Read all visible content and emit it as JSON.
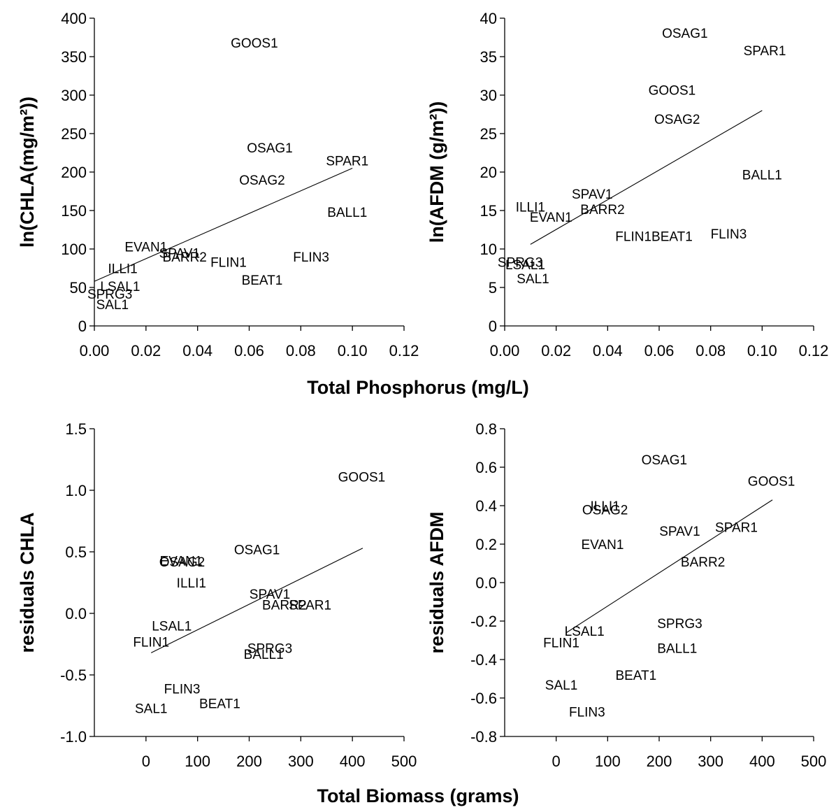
{
  "figure": {
    "row1_xlabel": "Total Phosphorus (mg/L)",
    "row2_xlabel": "Total Biomass (grams)"
  },
  "chart_data": [
    {
      "type": "scatter",
      "ylabel": "ln(CHLA(mg/m²))",
      "xlim": [
        0,
        0.12
      ],
      "ylim": [
        0,
        400
      ],
      "xticks": [
        "0.00",
        "0.02",
        "0.04",
        "0.06",
        "0.08",
        "0.10",
        "0.12"
      ],
      "yticks": [
        "0",
        "50",
        "100",
        "150",
        "200",
        "250",
        "300",
        "350",
        "400"
      ],
      "grid": false,
      "points": [
        {
          "label": "GOOS1",
          "x": 0.062,
          "y": 368
        },
        {
          "label": "OSAG1",
          "x": 0.068,
          "y": 232
        },
        {
          "label": "SPAR1",
          "x": 0.098,
          "y": 215
        },
        {
          "label": "OSAG2",
          "x": 0.065,
          "y": 190
        },
        {
          "label": "BALL1",
          "x": 0.098,
          "y": 148
        },
        {
          "label": "EVAN1",
          "x": 0.02,
          "y": 103
        },
        {
          "label": "SPAV1",
          "x": 0.033,
          "y": 95
        },
        {
          "label": "BARR2",
          "x": 0.035,
          "y": 90
        },
        {
          "label": "FLIN1",
          "x": 0.052,
          "y": 83
        },
        {
          "label": "FLIN3",
          "x": 0.084,
          "y": 90
        },
        {
          "label": "ILLI1",
          "x": 0.011,
          "y": 75
        },
        {
          "label": "BEAT1",
          "x": 0.065,
          "y": 60
        },
        {
          "label": "LSAL1",
          "x": 0.01,
          "y": 52
        },
        {
          "label": "SPRG3",
          "x": 0.006,
          "y": 42
        },
        {
          "label": "SAL1",
          "x": 0.007,
          "y": 28
        }
      ],
      "fit": {
        "x": [
          0.0,
          0.1
        ],
        "y": [
          58,
          205
        ]
      }
    },
    {
      "type": "scatter",
      "ylabel": "ln(AFDM (g/m²))",
      "xlim": [
        0,
        0.12
      ],
      "ylim": [
        0,
        40
      ],
      "xticks": [
        "0.00",
        "0.02",
        "0.04",
        "0.06",
        "0.08",
        "0.10",
        "0.12"
      ],
      "yticks": [
        "0",
        "5",
        "10",
        "15",
        "20",
        "25",
        "30",
        "35",
        "40"
      ],
      "grid": false,
      "points": [
        {
          "label": "OSAG1",
          "x": 0.07,
          "y": 38.1
        },
        {
          "label": "SPAR1",
          "x": 0.101,
          "y": 35.8
        },
        {
          "label": "GOOS1",
          "x": 0.065,
          "y": 30.7
        },
        {
          "label": "OSAG2",
          "x": 0.067,
          "y": 26.9
        },
        {
          "label": "BALL1",
          "x": 0.1,
          "y": 19.7
        },
        {
          "label": "SPAV1",
          "x": 0.034,
          "y": 17.2
        },
        {
          "label": "ILLI1",
          "x": 0.01,
          "y": 15.5
        },
        {
          "label": "BARR2",
          "x": 0.038,
          "y": 15.2
        },
        {
          "label": "EVAN1",
          "x": 0.018,
          "y": 14.2
        },
        {
          "label": "FLIN1",
          "x": 0.05,
          "y": 11.7
        },
        {
          "label": "BEAT1",
          "x": 0.065,
          "y": 11.7
        },
        {
          "label": "FLIN3",
          "x": 0.087,
          "y": 12.0
        },
        {
          "label": "SPRG3",
          "x": 0.006,
          "y": 8.3
        },
        {
          "label": "LSAL1",
          "x": 0.008,
          "y": 8.0
        },
        {
          "label": "SAL1",
          "x": 0.011,
          "y": 6.2
        }
      ],
      "fit": {
        "x": [
          0.01,
          0.1
        ],
        "y": [
          10.6,
          28.0
        ]
      }
    },
    {
      "type": "scatter",
      "ylabel": "residuals CHLA",
      "xlim": [
        -100,
        500
      ],
      "ylim": [
        -1.0,
        1.5
      ],
      "xticks": [
        "0",
        "100",
        "200",
        "300",
        "400",
        "500"
      ],
      "yticks": [
        "-1.0",
        "-0.5",
        "0.0",
        "0.5",
        "1.0",
        "1.5"
      ],
      "grid": false,
      "points": [
        {
          "label": "GOOS1",
          "x": 418,
          "y": 1.11
        },
        {
          "label": "OSAG1",
          "x": 215,
          "y": 0.52
        },
        {
          "label": "EVAN1",
          "x": 68,
          "y": 0.43
        },
        {
          "label": "OSAG2",
          "x": 70,
          "y": 0.42
        },
        {
          "label": "ILLI1",
          "x": 88,
          "y": 0.25
        },
        {
          "label": "SPAV1",
          "x": 240,
          "y": 0.16
        },
        {
          "label": "BARR2",
          "x": 268,
          "y": 0.07
        },
        {
          "label": "SPAR1",
          "x": 318,
          "y": 0.07
        },
        {
          "label": "LSAL1",
          "x": 50,
          "y": -0.1
        },
        {
          "label": "FLIN1",
          "x": 10,
          "y": -0.23
        },
        {
          "label": "SPRG3",
          "x": 240,
          "y": -0.28
        },
        {
          "label": "BALL1",
          "x": 228,
          "y": -0.33
        },
        {
          "label": "FLIN3",
          "x": 70,
          "y": -0.61
        },
        {
          "label": "BEAT1",
          "x": 143,
          "y": -0.73
        },
        {
          "label": "SAL1",
          "x": 10,
          "y": -0.77
        }
      ],
      "fit": {
        "x": [
          10,
          420
        ],
        "y": [
          -0.32,
          0.53
        ]
      }
    },
    {
      "type": "scatter",
      "ylabel": "residuals AFDM",
      "xlim": [
        -100,
        500
      ],
      "ylim": [
        -0.8,
        0.8
      ],
      "xticks": [
        "0",
        "100",
        "200",
        "300",
        "400",
        "500"
      ],
      "yticks": [
        "-0.8",
        "-0.6",
        "-0.4",
        "-0.2",
        "0.0",
        "0.2",
        "0.4",
        "0.6",
        "0.8"
      ],
      "grid": false,
      "points": [
        {
          "label": "OSAG1",
          "x": 210,
          "y": 0.64
        },
        {
          "label": "GOOS1",
          "x": 418,
          "y": 0.53
        },
        {
          "label": "ILLI1",
          "x": 95,
          "y": 0.4
        },
        {
          "label": "OSAG2",
          "x": 95,
          "y": 0.38
        },
        {
          "label": "SPAV1",
          "x": 240,
          "y": 0.27
        },
        {
          "label": "SPAR1",
          "x": 350,
          "y": 0.29
        },
        {
          "label": "EVAN1",
          "x": 90,
          "y": 0.2
        },
        {
          "label": "BARR2",
          "x": 285,
          "y": 0.11
        },
        {
          "label": "SPRG3",
          "x": 240,
          "y": -0.21
        },
        {
          "label": "LSAL1",
          "x": 55,
          "y": -0.25
        },
        {
          "label": "FLIN1",
          "x": 10,
          "y": -0.31
        },
        {
          "label": "BALL1",
          "x": 235,
          "y": -0.34
        },
        {
          "label": "BEAT1",
          "x": 155,
          "y": -0.48
        },
        {
          "label": "SAL1",
          "x": 10,
          "y": -0.53
        },
        {
          "label": "FLIN3",
          "x": 60,
          "y": -0.67
        }
      ],
      "fit": {
        "x": [
          20,
          420
        ],
        "y": [
          -0.26,
          0.43
        ]
      }
    }
  ]
}
